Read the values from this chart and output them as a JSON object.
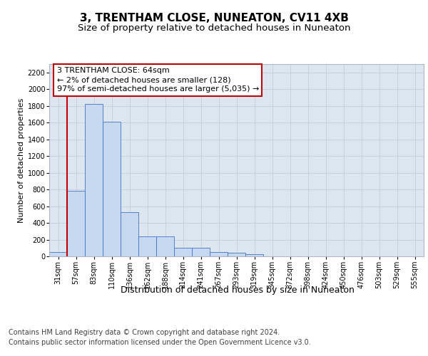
{
  "title": "3, TRENTHAM CLOSE, NUNEATON, CV11 4XB",
  "subtitle": "Size of property relative to detached houses in Nuneaton",
  "xlabel": "Distribution of detached houses by size in Nuneaton",
  "ylabel": "Number of detached properties",
  "categories": [
    "31sqm",
    "57sqm",
    "83sqm",
    "110sqm",
    "136sqm",
    "162sqm",
    "188sqm",
    "214sqm",
    "241sqm",
    "267sqm",
    "293sqm",
    "319sqm",
    "345sqm",
    "372sqm",
    "398sqm",
    "424sqm",
    "450sqm",
    "476sqm",
    "503sqm",
    "529sqm",
    "555sqm"
  ],
  "values": [
    50,
    780,
    1820,
    1610,
    525,
    235,
    235,
    105,
    105,
    50,
    40,
    25,
    0,
    0,
    0,
    0,
    0,
    0,
    0,
    0,
    0
  ],
  "bar_color": "#c6d9f1",
  "bar_edge_color": "#4472c4",
  "vline_color": "#c00000",
  "annotation_line1": "3 TRENTHAM CLOSE: 64sqm",
  "annotation_line2": "← 2% of detached houses are smaller (128)",
  "annotation_line3": "97% of semi-detached houses are larger (5,035) →",
  "annotation_box_color": "white",
  "annotation_box_edgecolor": "#c00000",
  "ylim": [
    0,
    2300
  ],
  "yticks": [
    0,
    200,
    400,
    600,
    800,
    1000,
    1200,
    1400,
    1600,
    1800,
    2000,
    2200
  ],
  "grid_color": "#c8d0dc",
  "bg_color": "#dce6f1",
  "footer_line1": "Contains HM Land Registry data © Crown copyright and database right 2024.",
  "footer_line2": "Contains public sector information licensed under the Open Government Licence v3.0.",
  "title_fontsize": 11,
  "subtitle_fontsize": 9.5,
  "xlabel_fontsize": 9,
  "ylabel_fontsize": 8,
  "tick_fontsize": 7,
  "annotation_fontsize": 8,
  "footer_fontsize": 7
}
